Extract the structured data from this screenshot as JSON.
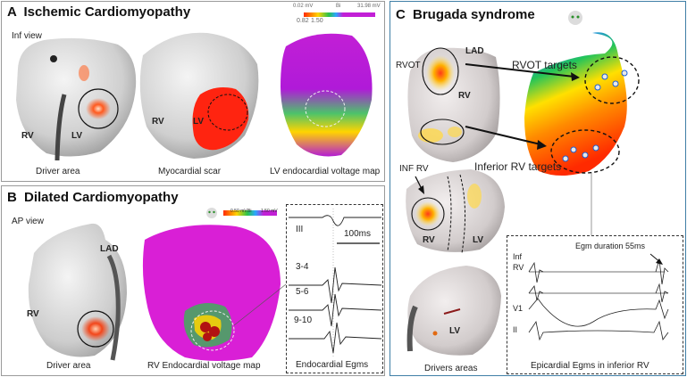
{
  "panel_a": {
    "letter": "A",
    "title": "Ischemic Cardiomyopathy",
    "view": "Inf view",
    "rv_label": "RV",
    "lv_label": "LV",
    "rv_label_2": "RV",
    "lv_label_2": "LV",
    "caption_driver": "Driver area",
    "caption_scar": "Myocardial scar",
    "caption_voltage": "LV endocardial voltage map",
    "scale_min": "0.02 mV",
    "scale_mid": "Bi",
    "scale_max": "31.98 mV",
    "scale_low1": "0.82",
    "scale_low2": "1.50"
  },
  "panel_b": {
    "letter": "B",
    "title": "Dilated Cardiomyopathy",
    "view": "AP view",
    "lad_label": "LAD",
    "rv_label": "RV",
    "caption_driver": "Driver area",
    "caption_voltage": "RV Endocardial voltage map",
    "caption_egms": "Endocardial Egms",
    "egm_lead_1": "III",
    "egm_lead_2": "3-4",
    "egm_lead_3": "5-6",
    "egm_lead_4": "9-10",
    "egm_scale": "100ms",
    "scale_min": "0.50 mV",
    "scale_mid": "Bi",
    "scale_max": "1.50 mV"
  },
  "panel_c": {
    "letter": "C",
    "title": "Brugada syndrome",
    "rvot_label": "RVOT",
    "lad_label": "LAD",
    "rv_label": "RV",
    "rvot_targets": "RVOT targets",
    "inf_rv_label": "INF RV",
    "inferior_targets": "Inferior RV targets",
    "rv_label_2": "RV",
    "lv_label": "LV",
    "lv_label_2": "LV",
    "caption_drivers": "Drivers areas",
    "egm_duration": "Egm duration 55ms",
    "lead_inf_rv_1": "Inf",
    "lead_inf_rv_2": "RV",
    "lead_v1": "V1",
    "lead_ii": "II",
    "caption_epicardial": "Epicardial Egms in inferior RV"
  }
}
